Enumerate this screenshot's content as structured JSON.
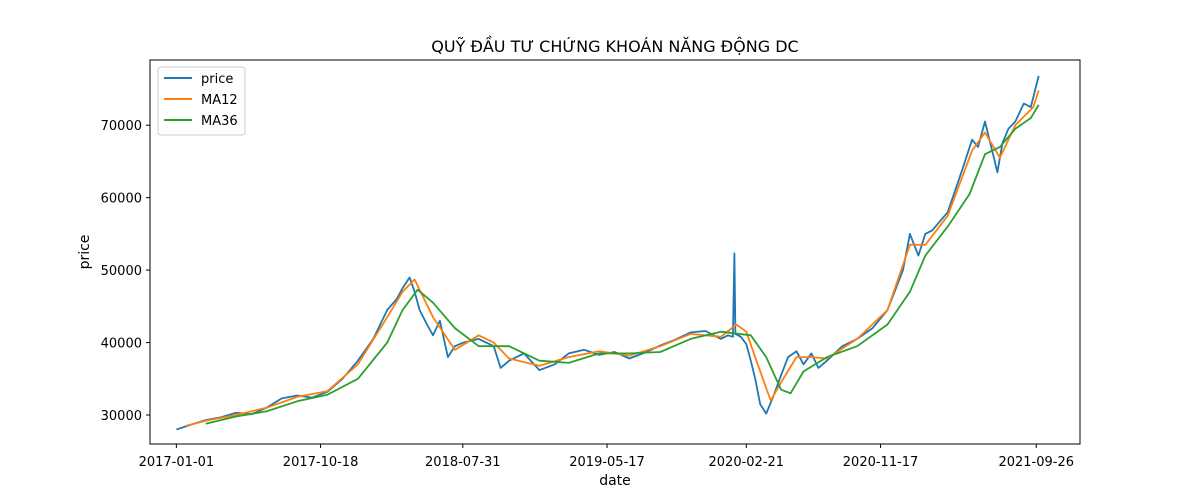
{
  "chart_data": {
    "type": "line",
    "title": "QUỸ ĐẦU TƯ CHỨNG KHOÁN NĂNG ĐỘNG DC",
    "xlabel": "date",
    "ylabel": "price",
    "x_ticks": [
      "2017-01-01",
      "2017-10-18",
      "2018-07-31",
      "2019-05-17",
      "2020-02-21",
      "2020-11-17",
      "2021-09-26"
    ],
    "xlim": [
      "2016-11-09",
      "2021-12-23"
    ],
    "y_ticks": [
      30000,
      40000,
      50000,
      60000,
      70000
    ],
    "ylim": [
      26000,
      79000
    ],
    "grid": false,
    "legend_position": "upper-left",
    "series": [
      {
        "name": "price",
        "color": "#1f77b4",
        "points": [
          [
            "2017-01-01",
            28000
          ],
          [
            "2017-02-01",
            28700
          ],
          [
            "2017-03-01",
            29300
          ],
          [
            "2017-04-01",
            29700
          ],
          [
            "2017-05-01",
            30300
          ],
          [
            "2017-06-01",
            30100
          ],
          [
            "2017-07-01",
            31000
          ],
          [
            "2017-08-01",
            32300
          ],
          [
            "2017-09-01",
            32700
          ],
          [
            "2017-10-01",
            32400
          ],
          [
            "2017-11-01",
            33200
          ],
          [
            "2017-12-01",
            35000
          ],
          [
            "2018-01-01",
            37500
          ],
          [
            "2018-02-01",
            40500
          ],
          [
            "2018-03-01",
            44500
          ],
          [
            "2018-03-20",
            46000
          ],
          [
            "2018-04-01",
            47500
          ],
          [
            "2018-04-15",
            49000
          ],
          [
            "2018-04-25",
            47000
          ],
          [
            "2018-05-05",
            44500
          ],
          [
            "2018-05-20",
            42500
          ],
          [
            "2018-06-01",
            41000
          ],
          [
            "2018-06-15",
            43000
          ],
          [
            "2018-07-01",
            38000
          ],
          [
            "2018-07-15",
            39500
          ],
          [
            "2018-08-01",
            40000
          ],
          [
            "2018-09-01",
            40500
          ],
          [
            "2018-10-01",
            39500
          ],
          [
            "2018-10-15",
            36500
          ],
          [
            "2018-11-01",
            37500
          ],
          [
            "2018-12-01",
            38500
          ],
          [
            "2019-01-01",
            36200
          ],
          [
            "2019-02-01",
            37000
          ],
          [
            "2019-03-01",
            38500
          ],
          [
            "2019-04-01",
            39000
          ],
          [
            "2019-05-01",
            38300
          ],
          [
            "2019-06-01",
            38700
          ],
          [
            "2019-07-01",
            37800
          ],
          [
            "2019-08-01",
            38600
          ],
          [
            "2019-09-01",
            39600
          ],
          [
            "2019-10-01",
            40400
          ],
          [
            "2019-11-01",
            41400
          ],
          [
            "2019-12-01",
            41600
          ],
          [
            "2020-01-01",
            40500
          ],
          [
            "2020-01-15",
            41000
          ],
          [
            "2020-01-25",
            40800
          ],
          [
            "2020-01-28",
            52300
          ],
          [
            "2020-01-30",
            41200
          ],
          [
            "2020-02-10",
            40800
          ],
          [
            "2020-02-21",
            39800
          ],
          [
            "2020-03-01",
            37500
          ],
          [
            "2020-03-10",
            35000
          ],
          [
            "2020-03-20",
            31500
          ],
          [
            "2020-04-01",
            30200
          ],
          [
            "2020-04-15",
            32500
          ],
          [
            "2020-05-01",
            35500
          ],
          [
            "2020-05-15",
            38000
          ],
          [
            "2020-06-01",
            38800
          ],
          [
            "2020-06-15",
            37000
          ],
          [
            "2020-07-01",
            38500
          ],
          [
            "2020-07-15",
            36500
          ],
          [
            "2020-08-01",
            37500
          ],
          [
            "2020-09-01",
            39500
          ],
          [
            "2020-10-01",
            40500
          ],
          [
            "2020-11-01",
            42000
          ],
          [
            "2020-12-01",
            44500
          ],
          [
            "2021-01-01",
            50000
          ],
          [
            "2021-01-15",
            55000
          ],
          [
            "2021-02-01",
            52000
          ],
          [
            "2021-02-15",
            55000
          ],
          [
            "2021-03-01",
            55500
          ],
          [
            "2021-04-01",
            58000
          ],
          [
            "2021-05-01",
            64000
          ],
          [
            "2021-05-20",
            68000
          ],
          [
            "2021-06-01",
            67000
          ],
          [
            "2021-06-15",
            70500
          ],
          [
            "2021-07-01",
            66000
          ],
          [
            "2021-07-10",
            63500
          ],
          [
            "2021-07-20",
            67500
          ],
          [
            "2021-08-01",
            69500
          ],
          [
            "2021-08-15",
            70500
          ],
          [
            "2021-09-01",
            73000
          ],
          [
            "2021-09-15",
            72500
          ],
          [
            "2021-10-01",
            76800
          ]
        ]
      },
      {
        "name": "MA12",
        "color": "#ff7f0e",
        "points": [
          [
            "2017-01-20",
            28500
          ],
          [
            "2017-03-01",
            29200
          ],
          [
            "2017-05-01",
            30000
          ],
          [
            "2017-07-01",
            31000
          ],
          [
            "2017-09-01",
            32500
          ],
          [
            "2017-11-01",
            33300
          ],
          [
            "2018-01-01",
            37000
          ],
          [
            "2018-03-01",
            43500
          ],
          [
            "2018-04-01",
            47000
          ],
          [
            "2018-04-25",
            48700
          ],
          [
            "2018-06-01",
            43500
          ],
          [
            "2018-07-15",
            39000
          ],
          [
            "2018-09-01",
            41000
          ],
          [
            "2018-10-01",
            40000
          ],
          [
            "2018-11-01",
            37800
          ],
          [
            "2019-01-01",
            36800
          ],
          [
            "2019-03-01",
            38000
          ],
          [
            "2019-05-01",
            38800
          ],
          [
            "2019-07-01",
            38200
          ],
          [
            "2019-09-01",
            39500
          ],
          [
            "2019-11-01",
            41200
          ],
          [
            "2020-01-01",
            40800
          ],
          [
            "2020-02-01",
            42500
          ],
          [
            "2020-02-21",
            41500
          ],
          [
            "2020-03-15",
            37000
          ],
          [
            "2020-04-10",
            32000
          ],
          [
            "2020-05-01",
            34500
          ],
          [
            "2020-06-01",
            38000
          ],
          [
            "2020-07-01",
            38000
          ],
          [
            "2020-08-01",
            37800
          ],
          [
            "2020-10-01",
            40500
          ],
          [
            "2020-12-01",
            44500
          ],
          [
            "2021-01-15",
            53500
          ],
          [
            "2021-02-15",
            53500
          ],
          [
            "2021-04-01",
            57500
          ],
          [
            "2021-05-20",
            66500
          ],
          [
            "2021-06-15",
            69000
          ],
          [
            "2021-07-15",
            65500
          ],
          [
            "2021-08-15",
            70000
          ],
          [
            "2021-09-20",
            72500
          ],
          [
            "2021-10-01",
            74800
          ]
        ]
      },
      {
        "name": "MA36",
        "color": "#2ca02c",
        "points": [
          [
            "2017-03-01",
            28800
          ],
          [
            "2017-05-01",
            29800
          ],
          [
            "2017-07-01",
            30500
          ],
          [
            "2017-09-01",
            31900
          ],
          [
            "2017-11-01",
            32800
          ],
          [
            "2018-01-01",
            35000
          ],
          [
            "2018-03-01",
            40000
          ],
          [
            "2018-04-01",
            44500
          ],
          [
            "2018-05-01",
            47300
          ],
          [
            "2018-06-01",
            45500
          ],
          [
            "2018-07-15",
            42000
          ],
          [
            "2018-09-01",
            39500
          ],
          [
            "2018-11-01",
            39500
          ],
          [
            "2019-01-01",
            37500
          ],
          [
            "2019-03-01",
            37200
          ],
          [
            "2019-05-01",
            38500
          ],
          [
            "2019-07-01",
            38500
          ],
          [
            "2019-09-01",
            38700
          ],
          [
            "2019-11-01",
            40500
          ],
          [
            "2020-01-01",
            41500
          ],
          [
            "2020-03-01",
            41000
          ],
          [
            "2020-04-01",
            38000
          ],
          [
            "2020-05-01",
            33500
          ],
          [
            "2020-05-20",
            33000
          ],
          [
            "2020-06-15",
            36000
          ],
          [
            "2020-08-01",
            38000
          ],
          [
            "2020-10-01",
            39500
          ],
          [
            "2020-12-01",
            42500
          ],
          [
            "2021-01-15",
            47000
          ],
          [
            "2021-02-15",
            52000
          ],
          [
            "2021-04-01",
            56000
          ],
          [
            "2021-05-15",
            60500
          ],
          [
            "2021-06-15",
            66000
          ],
          [
            "2021-07-15",
            67000
          ],
          [
            "2021-08-15",
            69500
          ],
          [
            "2021-09-15",
            71000
          ],
          [
            "2021-10-01",
            72800
          ]
        ]
      }
    ]
  }
}
